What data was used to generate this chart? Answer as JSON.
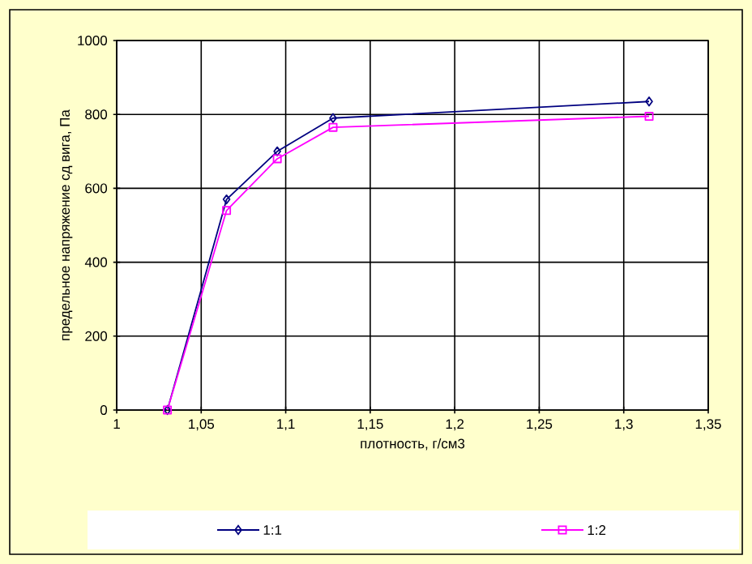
{
  "chart_data": {
    "type": "line",
    "xlabel": "плотность, г/см3",
    "ylabel": "предельное напряжение сд вига, Па",
    "xlim": [
      1,
      1.35
    ],
    "ylim": [
      0,
      1000
    ],
    "xticks": [
      1,
      {
        "value": 1.05,
        "label": "1,05"
      },
      {
        "value": 1.1,
        "label": "1,1"
      },
      {
        "value": 1.15,
        "label": "1,15"
      },
      {
        "value": 1.2,
        "label": "1,2"
      },
      {
        "value": 1.25,
        "label": "1,25"
      },
      {
        "value": 1.3,
        "label": "1,3"
      },
      {
        "value": 1.35,
        "label": "1,35"
      }
    ],
    "yticks": [
      0,
      200,
      400,
      600,
      800,
      1000
    ],
    "grid": true,
    "legend": "bottom",
    "series": [
      {
        "name": "1:1",
        "color": "#000080",
        "marker": "diamond",
        "x": [
          1.03,
          1.065,
          1.095,
          1.128,
          1.315
        ],
        "values": [
          0,
          570,
          700,
          790,
          835
        ]
      },
      {
        "name": "1:2",
        "color": "#ff00ff",
        "marker": "square",
        "x": [
          1.03,
          1.065,
          1.095,
          1.128,
          1.315
        ],
        "values": [
          0,
          540,
          680,
          765,
          795
        ]
      }
    ]
  }
}
